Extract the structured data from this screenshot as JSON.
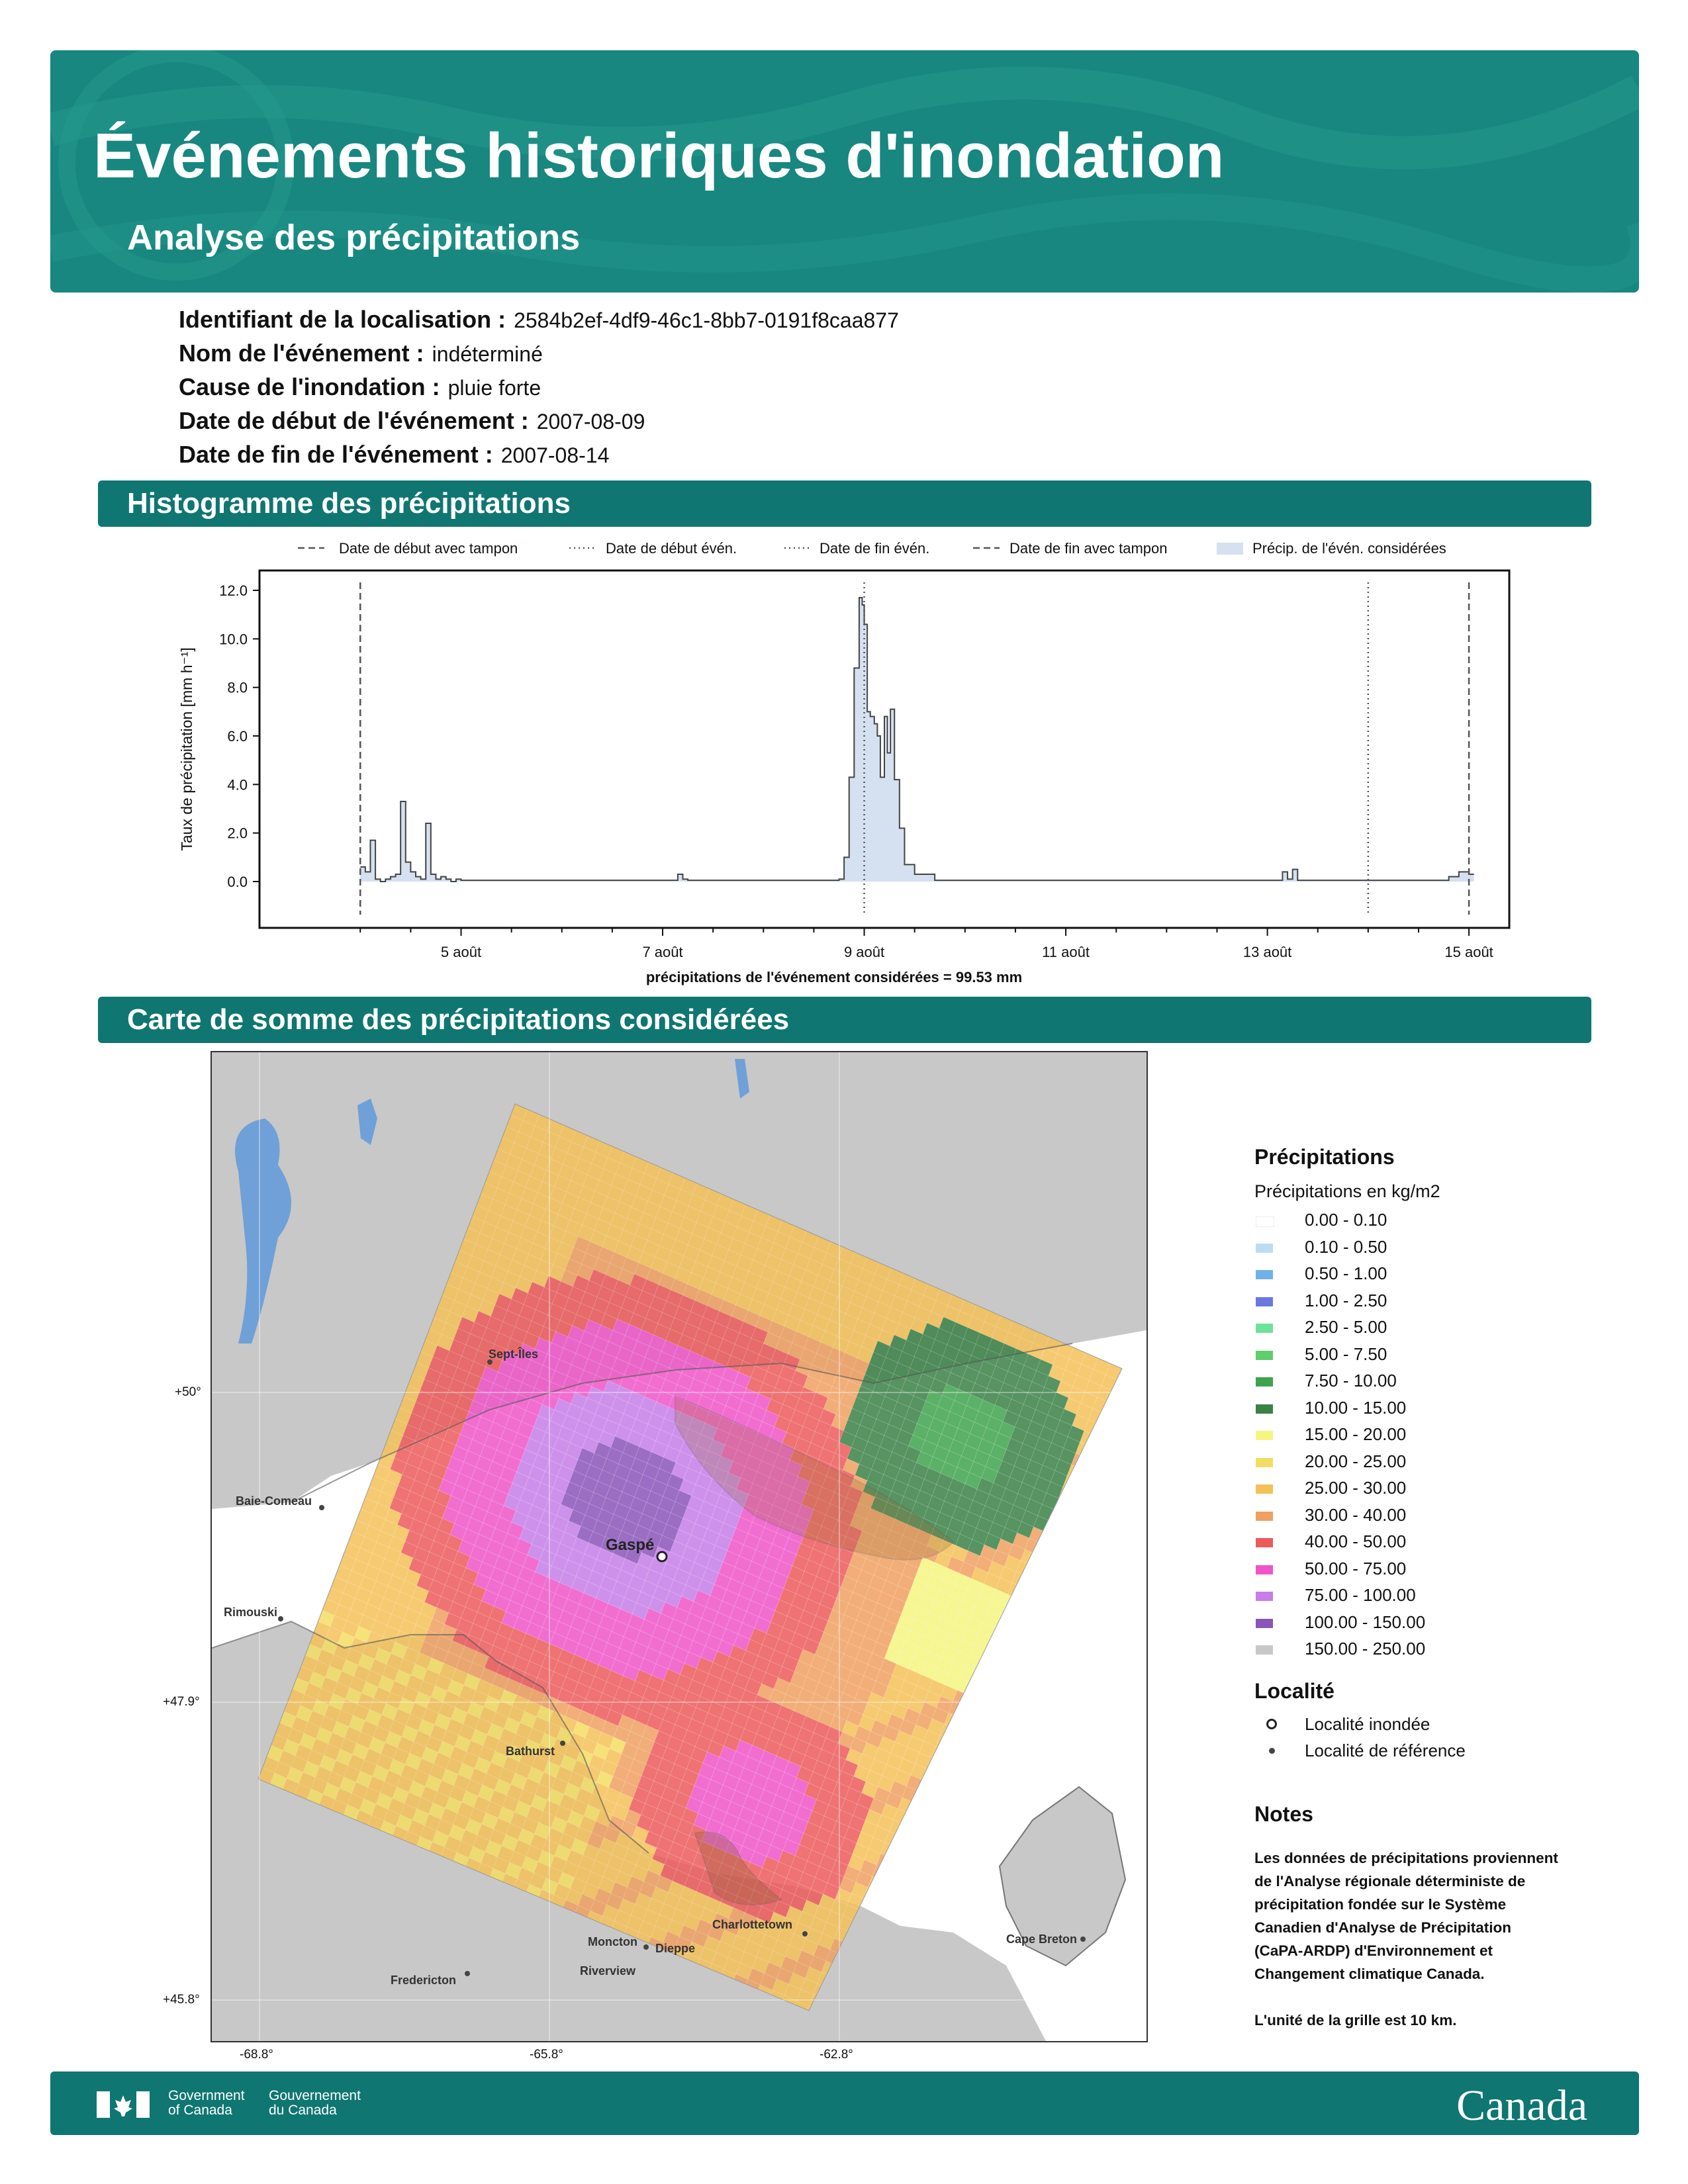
{
  "header": {
    "title": "Événements historiques d'inondation",
    "subtitle": "Analyse des précipitations"
  },
  "meta": [
    {
      "label": "Identifiant de la localisation :",
      "value": "2584b2ef-4df9-46c1-8bb7-0191f8caa877"
    },
    {
      "label": "Nom de l'événement :",
      "value": "indéterminé"
    },
    {
      "label": "Cause de l'inondation :",
      "value": "pluie forte"
    },
    {
      "label": "Date de début de l'événement :",
      "value": "2007-08-09"
    },
    {
      "label": "Date de fin de l'événement :",
      "value": "2007-08-14"
    }
  ],
  "sections": {
    "histogram": "Histogramme des précipitations",
    "map": "Carte de somme des précipitations considérées"
  },
  "chart_data": {
    "type": "area",
    "ylabel": "Taux de précipitation [mm h⁻¹]",
    "xlabel": "précipitations de l'événement considérées = 99.53 mm",
    "ylim": [
      0,
      12
    ],
    "yticks": [
      "0.0",
      "2.0",
      "4.0",
      "6.0",
      "8.0",
      "10.0",
      "12.0"
    ],
    "xticks": [
      "5 août",
      "7 août",
      "9 août",
      "11 août",
      "13 août",
      "15 août"
    ],
    "xtick_days": [
      5,
      7,
      9,
      11,
      13,
      15
    ],
    "xlim_days": [
      3.0,
      15.4
    ],
    "grid": false,
    "legend_position": "top",
    "legend": [
      {
        "label": "Date de début avec tampon",
        "style": "dashed"
      },
      {
        "label": "Date de début évén.",
        "style": "dotted"
      },
      {
        "label": "Date de fin évén.",
        "style": "dotted"
      },
      {
        "label": "Date de fin avec tampon",
        "style": "dashed"
      },
      {
        "label": "Précip. de l'évén. considérées",
        "style": "fill"
      }
    ],
    "vlines": [
      {
        "day": 4.0,
        "style": "dashed"
      },
      {
        "day": 9.0,
        "style": "dotted"
      },
      {
        "day": 14.0,
        "style": "dotted"
      },
      {
        "day": 15.0,
        "style": "dashed"
      }
    ],
    "fill_range_days": [
      4.0,
      15.0
    ],
    "colors": {
      "fill": "#d5e0f0",
      "line": "#444444"
    },
    "x": [
      4.0,
      4.05,
      4.1,
      4.15,
      4.2,
      4.25,
      4.3,
      4.35,
      4.4,
      4.45,
      4.5,
      4.55,
      4.6,
      4.65,
      4.7,
      4.75,
      4.8,
      4.85,
      4.9,
      4.95,
      5.0,
      5.5,
      6.0,
      6.5,
      7.0,
      7.15,
      7.2,
      7.25,
      7.5,
      8.0,
      8.5,
      8.75,
      8.8,
      8.85,
      8.9,
      8.95,
      8.98,
      9.0,
      9.03,
      9.06,
      9.1,
      9.13,
      9.16,
      9.2,
      9.23,
      9.26,
      9.3,
      9.35,
      9.4,
      9.5,
      9.6,
      9.7,
      9.8,
      10.0,
      10.5,
      11.0,
      11.5,
      12.0,
      12.5,
      13.0,
      13.15,
      13.2,
      13.25,
      13.3,
      13.4,
      13.5,
      14.0,
      14.5,
      14.8,
      14.9,
      15.0
    ],
    "values": [
      0.6,
      0.4,
      1.7,
      0.1,
      0.0,
      0.1,
      0.2,
      0.3,
      3.3,
      0.8,
      0.4,
      0.2,
      0.1,
      2.4,
      0.3,
      0.1,
      0.2,
      0.1,
      0.0,
      0.1,
      0.05,
      0.05,
      0.05,
      0.05,
      0.05,
      0.3,
      0.1,
      0.05,
      0.05,
      0.05,
      0.05,
      0.1,
      1.0,
      4.3,
      8.8,
      11.7,
      11.4,
      10.6,
      7.0,
      6.8,
      6.5,
      6.0,
      4.3,
      6.8,
      5.3,
      7.1,
      4.2,
      2.2,
      0.7,
      0.3,
      0.3,
      0.05,
      0.05,
      0.05,
      0.05,
      0.05,
      0.05,
      0.05,
      0.05,
      0.05,
      0.4,
      0.1,
      0.5,
      0.05,
      0.05,
      0.05,
      0.05,
      0.05,
      0.2,
      0.4,
      0.3
    ]
  },
  "map": {
    "lat_labels": [
      "+50°",
      "+47.9°",
      "+45.8°"
    ],
    "lon_labels": [
      "-68.8°",
      "-65.8°",
      "-62.8°"
    ],
    "places": [
      {
        "name": "Sept-Îles",
        "kind": "reference"
      },
      {
        "name": "Baie-Comeau",
        "kind": "reference"
      },
      {
        "name": "Rimouski",
        "kind": "reference"
      },
      {
        "name": "Gaspé",
        "kind": "flooded"
      },
      {
        "name": "Bathurst",
        "kind": "reference"
      },
      {
        "name": "Charlottetown",
        "kind": "reference"
      },
      {
        "name": "Moncton",
        "kind": "reference"
      },
      {
        "name": "Dieppe",
        "kind": "reference"
      },
      {
        "name": "Riverview",
        "kind": "reference"
      },
      {
        "name": "Fredericton",
        "kind": "reference"
      },
      {
        "name": "Cape Breton",
        "kind": "reference"
      }
    ]
  },
  "legend": {
    "title": "Précipitations",
    "subtitle": "Précipitations en kg/m2",
    "classes": [
      {
        "label": "0.00 - 0.10",
        "color": "#ffffff"
      },
      {
        "label": "0.10 - 0.50",
        "color": "#bcdcf4"
      },
      {
        "label": "0.50 - 1.00",
        "color": "#6fb2e8"
      },
      {
        "label": "1.00 - 2.50",
        "color": "#6a78e0"
      },
      {
        "label": "2.50 - 5.00",
        "color": "#6de39a"
      },
      {
        "label": "5.00 - 7.50",
        "color": "#5ecf6a"
      },
      {
        "label": "7.50 - 10.00",
        "color": "#3fa34e"
      },
      {
        "label": "10.00 - 15.00",
        "color": "#3b8047"
      },
      {
        "label": "15.00 - 20.00",
        "color": "#f5f580"
      },
      {
        "label": "20.00 - 25.00",
        "color": "#f3dd62"
      },
      {
        "label": "25.00 - 30.00",
        "color": "#f4c158"
      },
      {
        "label": "30.00 - 40.00",
        "color": "#f0a060"
      },
      {
        "label": "40.00 - 50.00",
        "color": "#ec5a5a"
      },
      {
        "label": "50.00 - 75.00",
        "color": "#ef55c8"
      },
      {
        "label": "75.00 - 100.00",
        "color": "#c67ee8"
      },
      {
        "label": "100.00 - 150.00",
        "color": "#8a55b8"
      },
      {
        "label": "150.00 - 250.00",
        "color": "#c8c8c8"
      }
    ],
    "locality_title": "Localité",
    "locality_items": [
      {
        "label": "Localité inondée",
        "kind": "flooded"
      },
      {
        "label": "Localité de référence",
        "kind": "reference"
      }
    ]
  },
  "notes": {
    "title": "Notes",
    "lines": [
      "Les données de précipitations proviennent",
      "de l'Analyse régionale déterministe de",
      "précipitation fondée sur le Système",
      "Canadien d'Analyse de Précipitation",
      "(CaPA-ARDP) d'Environnement et",
      "Changement climatique Canada."
    ],
    "grid_unit": "L'unité de la grille est 10 km."
  },
  "footer": {
    "gov_en_1": "Government",
    "gov_en_2": "of Canada",
    "gov_fr_1": "Gouvernement",
    "gov_fr_2": "du Canada",
    "wordmark": "Canada"
  }
}
